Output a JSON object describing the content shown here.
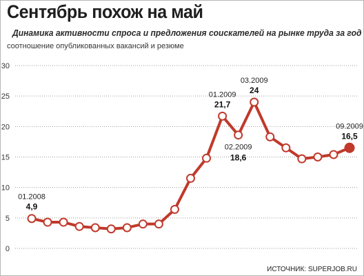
{
  "header": {
    "title": "Сентябрь похож на май",
    "subtitle": "Динамика активности спроса и предложения соискателей на рынке труда за год",
    "unit_label": "соотношение опубликованных вакансий и резюме"
  },
  "footer": {
    "source": "ИСТОЧНИК: SUPERJOB.RU"
  },
  "colors": {
    "line": "#c0392b",
    "marker_fill": "#ffffff",
    "last_marker": "#c0392b",
    "grid": "#9a9a9a"
  },
  "chart_data": {
    "type": "line",
    "title": "Сентябрь похож на май",
    "subtitle": "Динамика активности спроса и предложения соискателей на рынке труда за год",
    "ylabel": "соотношение опубликованных вакансий и резюме",
    "xlabel": "",
    "ylim": [
      0,
      30
    ],
    "yticks": [
      0,
      5,
      10,
      15,
      20,
      25,
      30
    ],
    "grid": true,
    "series": [
      {
        "values": [
          4.9,
          4.3,
          4.3,
          3.6,
          3.4,
          3.2,
          3.4,
          4.0,
          4.0,
          6.4,
          11.5,
          14.8,
          21.7,
          18.6,
          24,
          18.3,
          16.5,
          14.7,
          15.0,
          15.4,
          16.5
        ]
      }
    ],
    "annotations": [
      {
        "index": 0,
        "date": "01.2008",
        "value": "4,9",
        "position": "above"
      },
      {
        "index": 12,
        "date": "01.2009",
        "value": "21,7",
        "position": "above"
      },
      {
        "index": 13,
        "date": "02.2009",
        "value": "18,6",
        "position": "below"
      },
      {
        "index": 14,
        "date": "03.2009",
        "value": "24",
        "position": "above"
      },
      {
        "index": 20,
        "date": "09.2009",
        "value": "16,5",
        "position": "above"
      }
    ]
  }
}
